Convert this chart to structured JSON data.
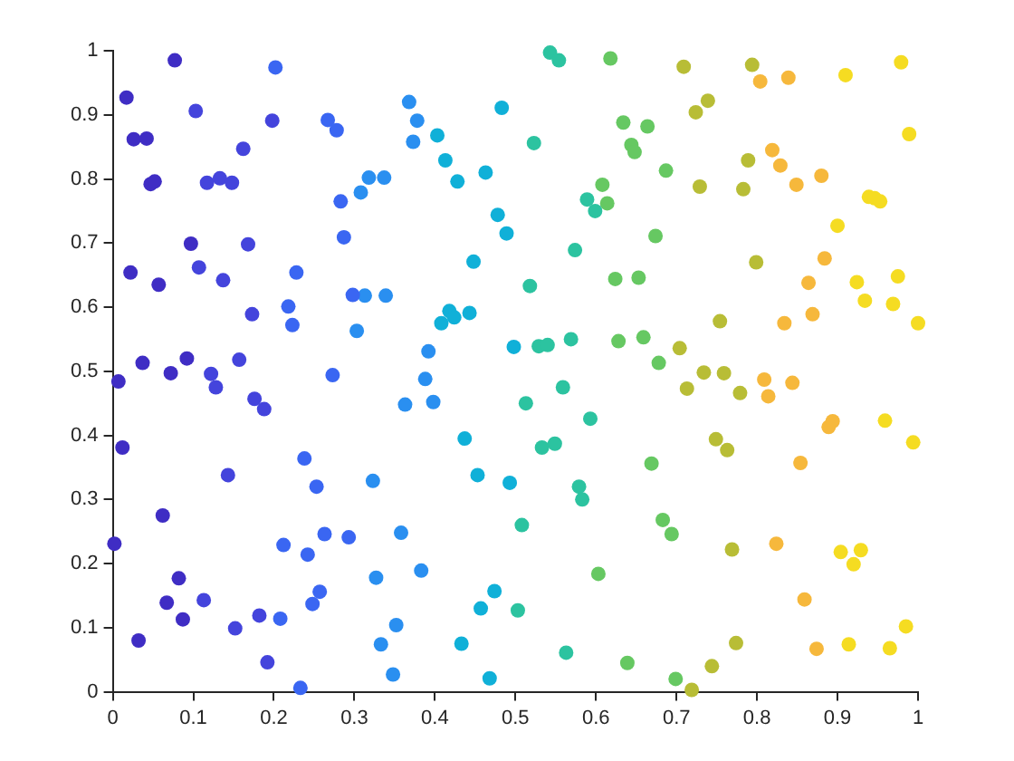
{
  "chart_data": {
    "type": "scatter",
    "marker": "circle",
    "grid": false,
    "legend": false,
    "xlim": [
      0,
      1
    ],
    "ylim": [
      0,
      1
    ],
    "xticks": [
      0,
      0.1,
      0.2,
      0.3,
      0.4,
      0.5,
      0.6,
      0.7,
      0.8,
      0.9,
      1
    ],
    "yticks": [
      0,
      0.1,
      0.2,
      0.3,
      0.4,
      0.5,
      0.6,
      0.7,
      0.8,
      0.9,
      1
    ],
    "series": [
      {
        "color": "#3f2dc4",
        "x": [
          0.017,
          0.077,
          0.026,
          0.042,
          0.047,
          0.052,
          0.097,
          0.022,
          0.057,
          0.037,
          0.092,
          0.072,
          0.007,
          0.012,
          0.062,
          0.002,
          0.082,
          0.067,
          0.087,
          0.032
        ],
        "values": [
          0.927,
          0.985,
          0.862,
          0.863,
          0.792,
          0.796,
          0.699,
          0.654,
          0.635,
          0.513,
          0.52,
          0.497,
          0.484,
          0.381,
          0.275,
          0.231,
          0.177,
          0.139,
          0.113,
          0.08
        ]
      },
      {
        "color": "#4444dc",
        "x": [
          0.103,
          0.117,
          0.133,
          0.148,
          0.162,
          0.168,
          0.107,
          0.137,
          0.173,
          0.198,
          0.157,
          0.122,
          0.128,
          0.176,
          0.188,
          0.143,
          0.113,
          0.182,
          0.152,
          0.192
        ],
        "values": [
          0.906,
          0.794,
          0.801,
          0.794,
          0.847,
          0.698,
          0.662,
          0.642,
          0.589,
          0.891,
          0.518,
          0.496,
          0.475,
          0.457,
          0.441,
          0.338,
          0.143,
          0.119,
          0.099,
          0.046
        ]
      },
      {
        "color": "#3a66f2",
        "x": [
          0.202,
          0.267,
          0.278,
          0.283,
          0.287,
          0.228,
          0.218,
          0.223,
          0.298,
          0.273,
          0.238,
          0.253,
          0.212,
          0.242,
          0.263,
          0.293,
          0.257,
          0.248,
          0.208,
          0.233
        ],
        "values": [
          0.974,
          0.892,
          0.876,
          0.765,
          0.709,
          0.654,
          0.601,
          0.572,
          0.619,
          0.494,
          0.364,
          0.32,
          0.229,
          0.214,
          0.246,
          0.241,
          0.156,
          0.137,
          0.114,
          0.006
        ]
      },
      {
        "color": "#2a8ff0",
        "x": [
          0.318,
          0.337,
          0.308,
          0.313,
          0.339,
          0.303,
          0.323,
          0.327,
          0.333,
          0.368,
          0.378,
          0.373,
          0.392,
          0.388,
          0.363,
          0.398,
          0.358,
          0.383,
          0.352,
          0.348
        ],
        "values": [
          0.802,
          0.802,
          0.779,
          0.618,
          0.618,
          0.563,
          0.329,
          0.178,
          0.074,
          0.92,
          0.891,
          0.858,
          0.531,
          0.488,
          0.448,
          0.452,
          0.248,
          0.189,
          0.104,
          0.027
        ]
      },
      {
        "color": "#10b0d8",
        "x": [
          0.403,
          0.483,
          0.413,
          0.428,
          0.463,
          0.478,
          0.489,
          0.448,
          0.418,
          0.424,
          0.443,
          0.408,
          0.498,
          0.437,
          0.453,
          0.493,
          0.474,
          0.457,
          0.433,
          0.468
        ],
        "values": [
          0.868,
          0.911,
          0.829,
          0.796,
          0.81,
          0.744,
          0.715,
          0.671,
          0.594,
          0.584,
          0.591,
          0.575,
          0.538,
          0.395,
          0.338,
          0.326,
          0.157,
          0.13,
          0.075,
          0.021
        ]
      },
      {
        "color": "#2cc3a0",
        "x": [
          0.543,
          0.554,
          0.523,
          0.589,
          0.599,
          0.574,
          0.518,
          0.529,
          0.54,
          0.569,
          0.513,
          0.559,
          0.593,
          0.533,
          0.549,
          0.579,
          0.583,
          0.508,
          0.503,
          0.563
        ],
        "values": [
          0.997,
          0.985,
          0.856,
          0.768,
          0.75,
          0.689,
          0.633,
          0.539,
          0.541,
          0.55,
          0.45,
          0.475,
          0.426,
          0.381,
          0.387,
          0.32,
          0.3,
          0.26,
          0.127,
          0.061
        ]
      },
      {
        "color": "#66c862",
        "x": [
          0.618,
          0.634,
          0.664,
          0.644,
          0.648,
          0.687,
          0.608,
          0.614,
          0.674,
          0.624,
          0.653,
          0.628,
          0.659,
          0.678,
          0.669,
          0.683,
          0.694,
          0.603,
          0.639,
          0.699
        ],
        "values": [
          0.988,
          0.888,
          0.882,
          0.853,
          0.842,
          0.813,
          0.791,
          0.762,
          0.711,
          0.644,
          0.646,
          0.547,
          0.553,
          0.513,
          0.356,
          0.268,
          0.246,
          0.184,
          0.045,
          0.02
        ]
      },
      {
        "color": "#b8bd36",
        "x": [
          0.709,
          0.794,
          0.739,
          0.724,
          0.729,
          0.789,
          0.783,
          0.799,
          0.754,
          0.704,
          0.734,
          0.759,
          0.713,
          0.779,
          0.749,
          0.763,
          0.769,
          0.774,
          0.744,
          0.719
        ],
        "values": [
          0.975,
          0.978,
          0.922,
          0.904,
          0.788,
          0.829,
          0.784,
          0.67,
          0.578,
          0.536,
          0.498,
          0.497,
          0.473,
          0.466,
          0.394,
          0.377,
          0.222,
          0.076,
          0.04,
          0.003
        ]
      },
      {
        "color": "#f6b83c",
        "x": [
          0.804,
          0.839,
          0.819,
          0.829,
          0.849,
          0.88,
          0.884,
          0.864,
          0.834,
          0.869,
          0.809,
          0.844,
          0.814,
          0.889,
          0.894,
          0.854,
          0.824,
          0.859,
          0.874
        ],
        "values": [
          0.952,
          0.958,
          0.845,
          0.821,
          0.791,
          0.805,
          0.676,
          0.638,
          0.575,
          0.589,
          0.487,
          0.482,
          0.461,
          0.413,
          0.422,
          0.357,
          0.231,
          0.144,
          0.067
        ]
      },
      {
        "color": "#f5dc22",
        "x": [
          0.91,
          0.979,
          0.989,
          0.939,
          0.946,
          0.953,
          0.9,
          0.924,
          0.975,
          0.934,
          0.969,
          1.0,
          0.959,
          0.994,
          0.904,
          0.929,
          0.92,
          0.985,
          0.914,
          0.965
        ],
        "values": [
          0.962,
          0.982,
          0.87,
          0.772,
          0.77,
          0.765,
          0.727,
          0.639,
          0.648,
          0.61,
          0.605,
          0.575,
          0.423,
          0.389,
          0.218,
          0.221,
          0.199,
          0.102,
          0.074,
          0.068
        ]
      }
    ]
  }
}
